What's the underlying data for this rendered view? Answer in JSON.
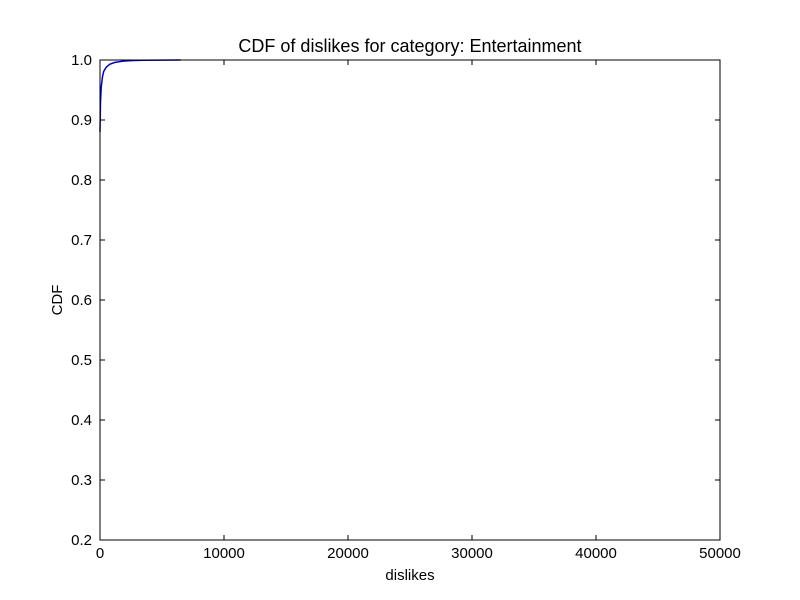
{
  "chart_data": {
    "type": "line",
    "title": "CDF of dislikes for category: Entertainment",
    "xlabel": "dislikes",
    "ylabel": "CDF",
    "xlim": [
      0,
      50000
    ],
    "ylim": [
      0.2,
      1.0
    ],
    "xticks": [
      0,
      10000,
      20000,
      30000,
      40000,
      50000
    ],
    "yticks": [
      0.2,
      0.3,
      0.4,
      0.5,
      0.6,
      0.7,
      0.8,
      0.9,
      1.0
    ],
    "xtick_labels": [
      "0",
      "10000",
      "20000",
      "30000",
      "40000",
      "50000"
    ],
    "ytick_labels": [
      "0.2",
      "0.3",
      "0.4",
      "0.5",
      "0.6",
      "0.7",
      "0.8",
      "0.9",
      "1.0"
    ],
    "grid": false,
    "series": [
      {
        "color": "#0000cc",
        "x": [
          0,
          40,
          100,
          200,
          300,
          500,
          800,
          1200,
          1800,
          2500,
          3500,
          5000,
          6500
        ],
        "y": [
          0.88,
          0.93,
          0.955,
          0.972,
          0.981,
          0.988,
          0.993,
          0.996,
          0.998,
          0.999,
          0.9995,
          0.9998,
          1.0
        ]
      }
    ]
  }
}
